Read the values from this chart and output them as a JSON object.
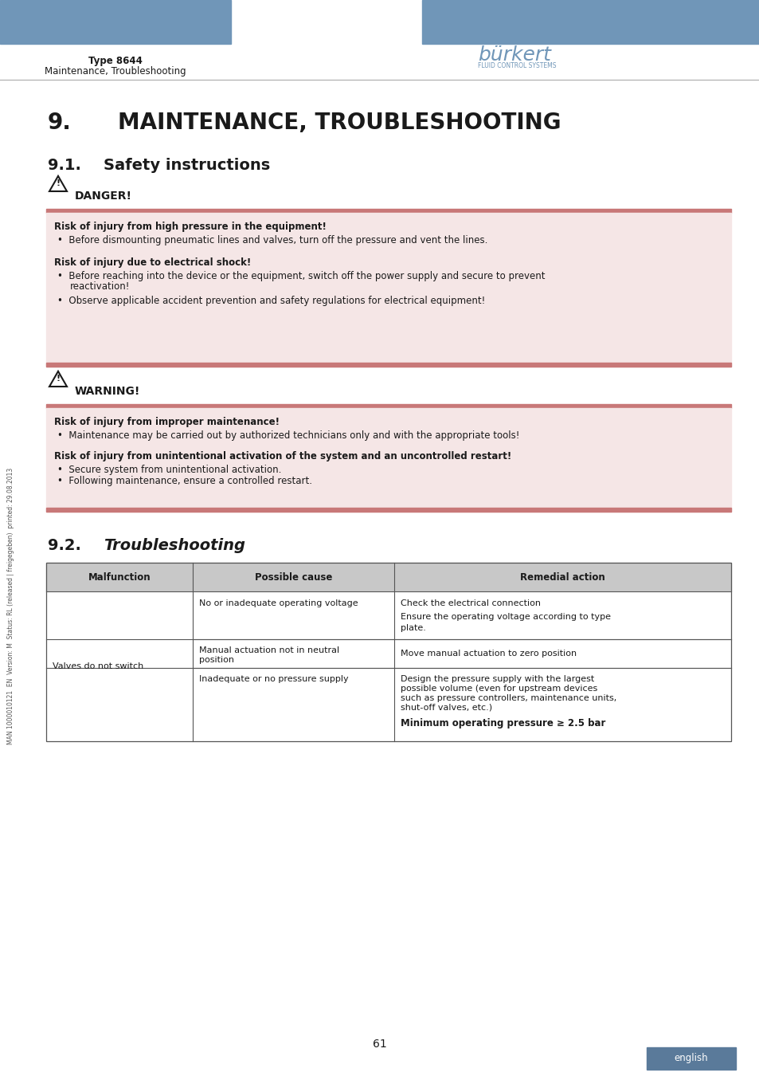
{
  "header_blue": "#7096b8",
  "bg_color": "#ffffff",
  "text_color": "#1a1a1a",
  "page_num": "61",
  "type_label": "Type 8644",
  "section_label": "Maintenance, Troubleshooting",
  "burkert_color": "#7096b8",
  "danger_label": "DANGER!",
  "warning_label": "WARNING!",
  "danger_box_bg": "#f5e6e6",
  "danger_bar_color": "#c87878",
  "warning_box_bg": "#f5e6e6",
  "warning_bar_color": "#c87878",
  "table_header_bg": "#c8c8c8",
  "table_border": "#555555",
  "side_text": "MAN 1000010121  EN  Version: M  Status: RL (released | freigegeben)  printed: 29.08.2013",
  "english_tab_bg": "#5a7a9a",
  "english_tab_color": "#ffffff",
  "table_headers": [
    "Malfunction",
    "Possible cause",
    "Remedial action"
  ]
}
